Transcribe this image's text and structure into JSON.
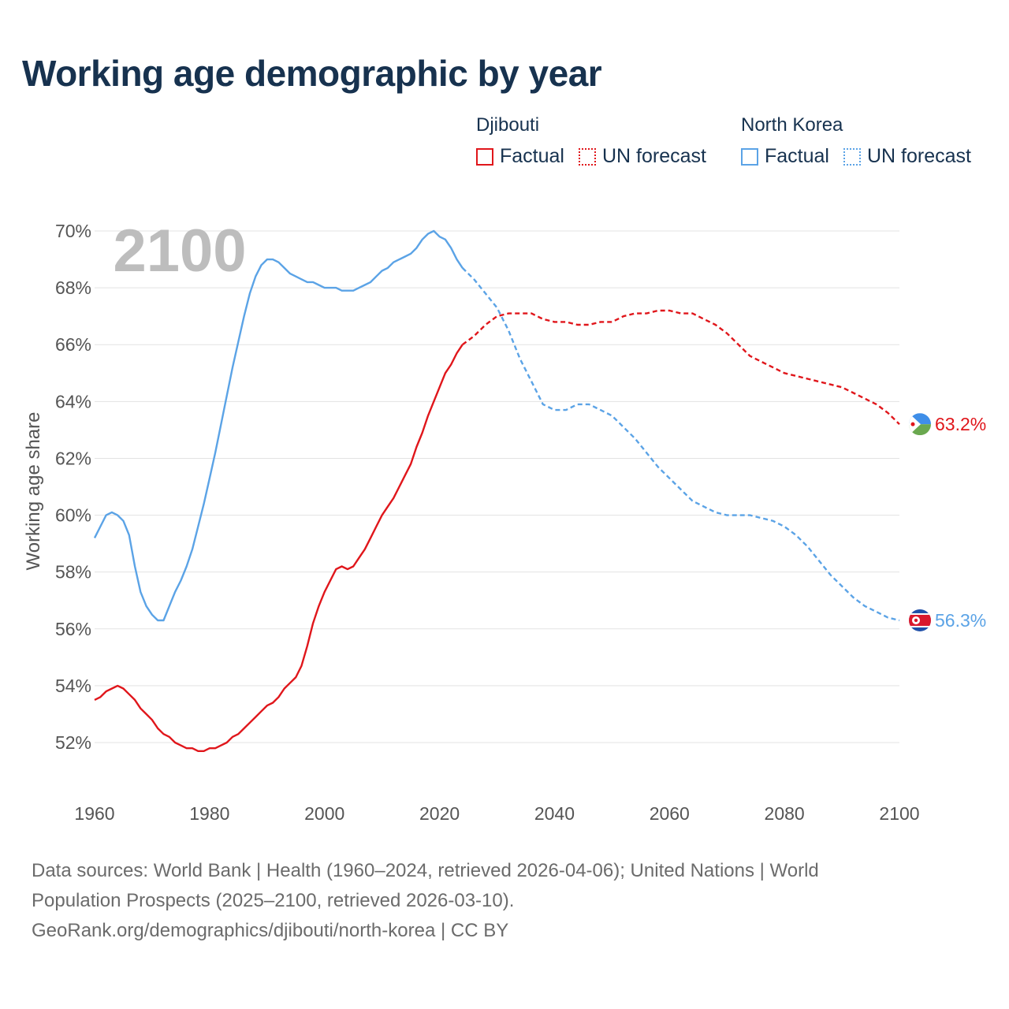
{
  "title": "Working age demographic by year",
  "year_label": "2100",
  "legend": {
    "groups": [
      {
        "name": "Djibouti",
        "color": "#e0161b",
        "factual_label": "Factual",
        "forecast_label": "UN forecast"
      },
      {
        "name": "North Korea",
        "color": "#5ba3e6",
        "factual_label": "Factual",
        "forecast_label": "UN forecast"
      }
    ]
  },
  "footer": {
    "line1": "Data sources: World Bank | Health (1960–2024, retrieved 2026-04-06); United Nations | World",
    "line2": "Population Prospects (2025–2100, retrieved 2026-03-10).",
    "line3": "GeoRank.org/demographics/djibouti/north-korea | CC BY"
  },
  "chart_data": {
    "type": "line",
    "title": "Working age demographic by year",
    "xlabel": "",
    "ylabel": "Working age share",
    "xlim": [
      1960,
      2100
    ],
    "ylim": [
      51,
      70
    ],
    "x_ticks": [
      1960,
      1980,
      2000,
      2020,
      2040,
      2060,
      2080,
      2100
    ],
    "y_ticks": [
      52,
      54,
      56,
      58,
      60,
      62,
      64,
      66,
      68,
      70
    ],
    "y_tick_labels": [
      "52%",
      "54%",
      "56%",
      "58%",
      "60%",
      "62%",
      "64%",
      "66%",
      "68%",
      "70%"
    ],
    "x_tick_labels": [
      "1960",
      "1980",
      "2000",
      "2020",
      "2040",
      "2060",
      "2080",
      "2100"
    ],
    "factual_range": [
      1960,
      2024
    ],
    "forecast_range": [
      2024,
      2100
    ],
    "series": [
      {
        "name": "Djibouti",
        "color": "#e0161b",
        "end_label": "63.2%",
        "x": [
          1960,
          1961,
          1962,
          1963,
          1964,
          1965,
          1966,
          1967,
          1968,
          1969,
          1970,
          1971,
          1972,
          1973,
          1974,
          1975,
          1976,
          1977,
          1978,
          1979,
          1980,
          1981,
          1982,
          1983,
          1984,
          1985,
          1986,
          1987,
          1988,
          1989,
          1990,
          1991,
          1992,
          1993,
          1994,
          1995,
          1996,
          1997,
          1998,
          1999,
          2000,
          2001,
          2002,
          2003,
          2004,
          2005,
          2006,
          2007,
          2008,
          2009,
          2010,
          2011,
          2012,
          2013,
          2014,
          2015,
          2016,
          2017,
          2018,
          2019,
          2020,
          2021,
          2022,
          2023,
          2024,
          2026,
          2028,
          2030,
          2032,
          2034,
          2036,
          2038,
          2040,
          2042,
          2044,
          2046,
          2048,
          2050,
          2052,
          2054,
          2056,
          2058,
          2060,
          2062,
          2064,
          2066,
          2068,
          2070,
          2072,
          2074,
          2076,
          2078,
          2080,
          2082,
          2084,
          2086,
          2088,
          2090,
          2092,
          2094,
          2096,
          2098,
          2100
        ],
        "values": [
          53.5,
          53.6,
          53.8,
          53.9,
          54.0,
          53.9,
          53.7,
          53.5,
          53.2,
          53.0,
          52.8,
          52.5,
          52.3,
          52.2,
          52.0,
          51.9,
          51.8,
          51.8,
          51.7,
          51.7,
          51.8,
          51.8,
          51.9,
          52.0,
          52.2,
          52.3,
          52.5,
          52.7,
          52.9,
          53.1,
          53.3,
          53.4,
          53.6,
          53.9,
          54.1,
          54.3,
          54.7,
          55.4,
          56.2,
          56.8,
          57.3,
          57.7,
          58.1,
          58.2,
          58.1,
          58.2,
          58.5,
          58.8,
          59.2,
          59.6,
          60.0,
          60.3,
          60.6,
          61.0,
          61.4,
          61.8,
          62.4,
          62.9,
          63.5,
          64.0,
          64.5,
          65.0,
          65.3,
          65.7,
          66.0,
          66.3,
          66.7,
          67.0,
          67.1,
          67.1,
          67.1,
          66.9,
          66.8,
          66.8,
          66.7,
          66.7,
          66.8,
          66.8,
          67.0,
          67.1,
          67.1,
          67.2,
          67.2,
          67.1,
          67.1,
          66.9,
          66.7,
          66.4,
          66.0,
          65.6,
          65.4,
          65.2,
          65.0,
          64.9,
          64.8,
          64.7,
          64.6,
          64.5,
          64.3,
          64.1,
          63.9,
          63.6,
          63.2
        ]
      },
      {
        "name": "North Korea",
        "color": "#5ba3e6",
        "end_label": "56.3%",
        "x": [
          1960,
          1961,
          1962,
          1963,
          1964,
          1965,
          1966,
          1967,
          1968,
          1969,
          1970,
          1971,
          1972,
          1973,
          1974,
          1975,
          1976,
          1977,
          1978,
          1979,
          1980,
          1981,
          1982,
          1983,
          1984,
          1985,
          1986,
          1987,
          1988,
          1989,
          1990,
          1991,
          1992,
          1993,
          1994,
          1995,
          1996,
          1997,
          1998,
          1999,
          2000,
          2001,
          2002,
          2003,
          2004,
          2005,
          2006,
          2007,
          2008,
          2009,
          2010,
          2011,
          2012,
          2013,
          2014,
          2015,
          2016,
          2017,
          2018,
          2019,
          2020,
          2021,
          2022,
          2023,
          2024,
          2026,
          2028,
          2030,
          2032,
          2034,
          2036,
          2038,
          2040,
          2042,
          2044,
          2046,
          2048,
          2050,
          2052,
          2054,
          2056,
          2058,
          2060,
          2062,
          2064,
          2066,
          2068,
          2070,
          2072,
          2074,
          2076,
          2078,
          2080,
          2082,
          2084,
          2086,
          2088,
          2090,
          2092,
          2094,
          2096,
          2098,
          2100
        ],
        "values": [
          59.2,
          59.6,
          60.0,
          60.1,
          60.0,
          59.8,
          59.3,
          58.2,
          57.3,
          56.8,
          56.5,
          56.3,
          56.3,
          56.8,
          57.3,
          57.7,
          58.2,
          58.8,
          59.6,
          60.4,
          61.3,
          62.2,
          63.2,
          64.2,
          65.2,
          66.1,
          67.0,
          67.8,
          68.4,
          68.8,
          69.0,
          69.0,
          68.9,
          68.7,
          68.5,
          68.4,
          68.3,
          68.2,
          68.2,
          68.1,
          68.0,
          68.0,
          68.0,
          67.9,
          67.9,
          67.9,
          68.0,
          68.1,
          68.2,
          68.4,
          68.6,
          68.7,
          68.9,
          69.0,
          69.1,
          69.2,
          69.4,
          69.7,
          69.9,
          70.0,
          69.8,
          69.7,
          69.4,
          69.0,
          68.7,
          68.3,
          67.8,
          67.3,
          66.5,
          65.5,
          64.7,
          63.9,
          63.7,
          63.7,
          63.9,
          63.9,
          63.7,
          63.5,
          63.1,
          62.7,
          62.2,
          61.7,
          61.3,
          60.9,
          60.5,
          60.3,
          60.1,
          60.0,
          60.0,
          60.0,
          59.9,
          59.8,
          59.6,
          59.3,
          58.9,
          58.4,
          57.9,
          57.5,
          57.1,
          56.8,
          56.6,
          56.4,
          56.3
        ]
      }
    ]
  }
}
